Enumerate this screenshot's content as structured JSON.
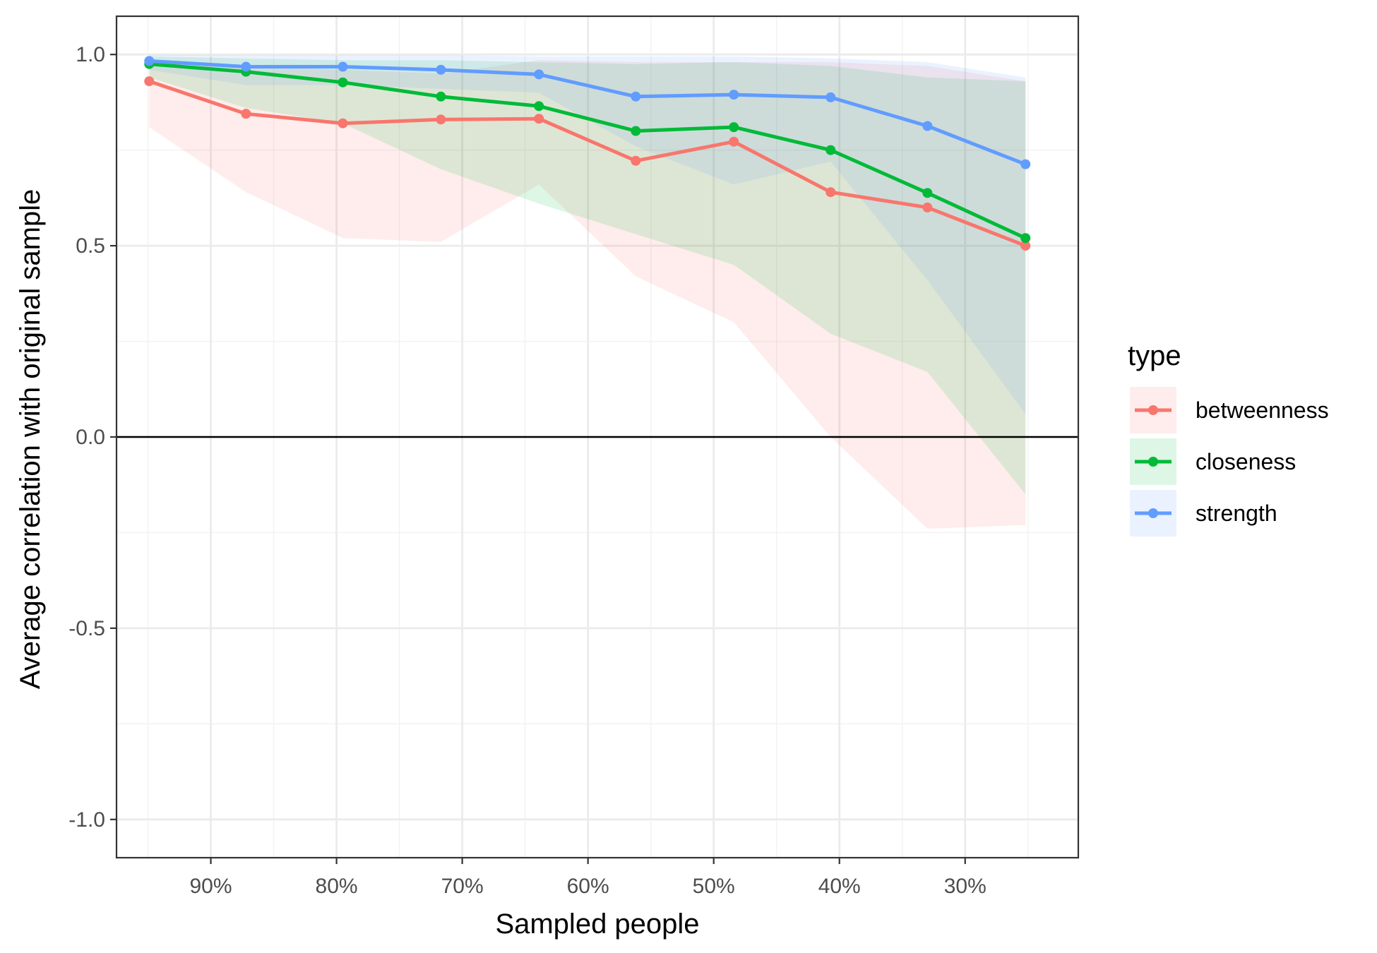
{
  "chart_data": {
    "type": "line",
    "xlabel": "Sampled people",
    "ylabel": "Average correlation with original sample",
    "x_ticks": [
      "90%",
      "80%",
      "70%",
      "60%",
      "50%",
      "40%",
      "30%"
    ],
    "x_tick_values": [
      90,
      80,
      70,
      60,
      50,
      40,
      30
    ],
    "y_ticks": [
      "-1.0",
      "-0.5",
      "0.0",
      "0.5",
      "1.0"
    ],
    "y_tick_values": [
      -1,
      -0.5,
      0,
      0.5,
      1
    ],
    "xlim": [
      97.5,
      21.0
    ],
    "ylim": [
      -1.1,
      1.1
    ],
    "x_reversed": true,
    "hline_at": 0,
    "grid": true,
    "x": [
      94.9,
      87.2,
      79.5,
      71.7,
      63.9,
      56.2,
      48.4,
      40.7,
      33.0,
      25.2
    ],
    "series": [
      {
        "name": "betweenness",
        "color": "#F8766D",
        "values": [
          0.93,
          0.845,
          0.82,
          0.83,
          0.832,
          0.722,
          0.772,
          0.64,
          0.6,
          0.5
        ],
        "lower": [
          0.81,
          0.64,
          0.52,
          0.51,
          0.66,
          0.42,
          0.3,
          0.0,
          -0.24,
          -0.23
        ],
        "upper": [
          0.97,
          0.97,
          0.96,
          0.95,
          0.985,
          0.98,
          0.98,
          0.98,
          0.97,
          0.93
        ]
      },
      {
        "name": "closeness",
        "color": "#00BA38",
        "values": [
          0.975,
          0.955,
          0.927,
          0.89,
          0.865,
          0.8,
          0.81,
          0.75,
          0.638,
          0.52
        ],
        "lower": [
          0.94,
          0.86,
          0.82,
          0.7,
          0.61,
          0.53,
          0.45,
          0.27,
          0.17,
          -0.15
        ],
        "upper": [
          0.995,
          0.99,
          0.985,
          0.985,
          0.98,
          0.975,
          0.98,
          0.97,
          0.94,
          0.93
        ]
      },
      {
        "name": "strength",
        "color": "#619CFF",
        "values": [
          0.983,
          0.968,
          0.968,
          0.96,
          0.948,
          0.89,
          0.895,
          0.888,
          0.813,
          0.713
        ],
        "lower": [
          0.96,
          0.92,
          0.92,
          0.91,
          0.9,
          0.76,
          0.66,
          0.72,
          0.41,
          0.06
        ],
        "upper": [
          0.999,
          0.998,
          0.998,
          0.998,
          0.995,
          0.995,
          0.995,
          0.99,
          0.98,
          0.94
        ]
      }
    ],
    "legend": {
      "title": "type",
      "position": "right",
      "entries": [
        "betweenness",
        "closeness",
        "strength"
      ]
    }
  }
}
